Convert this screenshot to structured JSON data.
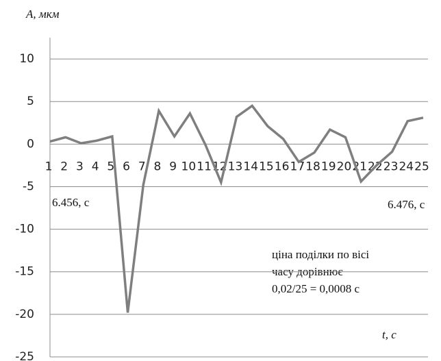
{
  "chart_data": {
    "type": "line",
    "y_label": "A, мкм",
    "x_label": "t, c",
    "annotations": [
      "6.456, c",
      "6.476, c"
    ],
    "note": [
      "ціна поділки по вісі",
      "часу дорівнює",
      "0,02/25 = 0,0008 с"
    ],
    "categories": [
      "1",
      "2",
      "3",
      "4",
      "5",
      "6",
      "7",
      "8",
      "9",
      "10",
      "11",
      "12",
      "13",
      "14",
      "15",
      "16",
      "17",
      "18",
      "19",
      "20",
      "21",
      "22",
      "23",
      "24",
      "25"
    ],
    "series": [
      {
        "name": "A",
        "color": "#7f7f7f",
        "values": [
          0.3,
          0.8,
          0.1,
          0.4,
          0.9,
          -19.8,
          -4.8,
          3.9,
          0.9,
          3.6,
          -0.1,
          -4.5,
          3.2,
          4.5,
          2.1,
          0.6,
          -2.1,
          -1.0,
          1.7,
          0.8,
          -4.4,
          -2.5,
          -0.9,
          2.7,
          3.1
        ]
      }
    ],
    "ylim": [
      -25,
      12.5
    ],
    "yticks": [
      -25,
      -20,
      -15,
      -10,
      -5,
      0,
      5,
      10
    ],
    "grid": true
  }
}
